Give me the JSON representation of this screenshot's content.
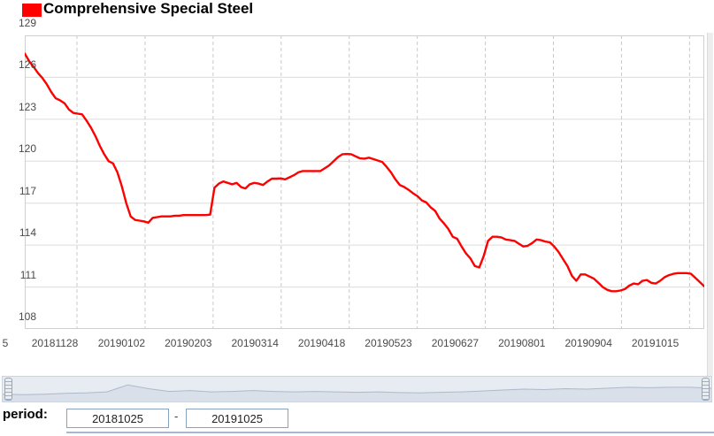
{
  "header": {
    "title": "Comprehensive Special Steel"
  },
  "chart_data": {
    "type": "line",
    "title": "Comprehensive Special Steel",
    "series_name": "Comprehensive Special Steel",
    "series_color": "#ff0000",
    "ylim": [
      108,
      129
    ],
    "y_ticks": [
      129,
      126,
      123,
      120,
      117,
      114,
      111,
      108
    ],
    "x_tick_labels": [
      "5",
      "20181128",
      "20190102",
      "20190203",
      "20190314",
      "20190418",
      "20190523",
      "20190627",
      "20190801",
      "20190904",
      "20191015"
    ],
    "grid": {
      "horizontal": "solid",
      "vertical": "dashed"
    },
    "legend_position": "top-left",
    "values": [
      127.7,
      127.15,
      126.75,
      126.3,
      125.95,
      125.5,
      124.95,
      124.5,
      124.35,
      124.15,
      123.7,
      123.45,
      123.4,
      123.35,
      122.9,
      122.4,
      121.8,
      121.1,
      120.5,
      120.0,
      119.85,
      119.2,
      118.2,
      117.0,
      116.05,
      115.8,
      115.75,
      115.7,
      115.6,
      115.95,
      116.0,
      116.05,
      116.05,
      116.05,
      116.1,
      116.1,
      116.15,
      116.15,
      116.15,
      116.15,
      116.15,
      116.15,
      116.18,
      118.1,
      118.4,
      118.55,
      118.45,
      118.35,
      118.45,
      118.15,
      118.05,
      118.35,
      118.45,
      118.4,
      118.3,
      118.55,
      118.75,
      118.75,
      118.77,
      118.7,
      118.85,
      119.0,
      119.2,
      119.3,
      119.3,
      119.3,
      119.3,
      119.3,
      119.5,
      119.7,
      120.0,
      120.3,
      120.5,
      120.52,
      120.5,
      120.35,
      120.2,
      120.18,
      120.25,
      120.15,
      120.05,
      119.95,
      119.6,
      119.2,
      118.7,
      118.3,
      118.15,
      117.95,
      117.7,
      117.5,
      117.2,
      117.05,
      116.7,
      116.45,
      115.9,
      115.55,
      115.15,
      114.6,
      114.45,
      113.9,
      113.4,
      113.05,
      112.5,
      112.4,
      113.2,
      114.3,
      114.6,
      114.6,
      114.55,
      114.4,
      114.35,
      114.3,
      114.1,
      113.9,
      113.95,
      114.15,
      114.4,
      114.35,
      114.25,
      114.2,
      113.9,
      113.5,
      113.0,
      112.5,
      111.8,
      111.45,
      111.9,
      111.9,
      111.75,
      111.6,
      111.3,
      111.0,
      110.8,
      110.7,
      110.7,
      110.75,
      110.85,
      111.1,
      111.25,
      111.2,
      111.45,
      111.5,
      111.3,
      111.25,
      111.45,
      111.7,
      111.85,
      111.95,
      112.0,
      112.0,
      112.0,
      111.95,
      111.65,
      111.35,
      111.05
    ]
  },
  "navigator": {
    "profile": [
      0.28,
      0.26,
      0.28,
      0.32,
      0.34,
      0.38,
      0.68,
      0.52,
      0.4,
      0.44,
      0.38,
      0.4,
      0.44,
      0.4,
      0.38,
      0.4,
      0.38,
      0.36,
      0.38,
      0.35,
      0.34,
      0.36,
      0.38,
      0.42,
      0.46,
      0.5,
      0.48,
      0.52,
      0.5,
      0.54,
      0.58,
      0.56,
      0.58,
      0.58,
      0.54
    ]
  },
  "period": {
    "label": "period:",
    "start_value": "20181025",
    "separator": "-",
    "end_value": "20191025"
  }
}
